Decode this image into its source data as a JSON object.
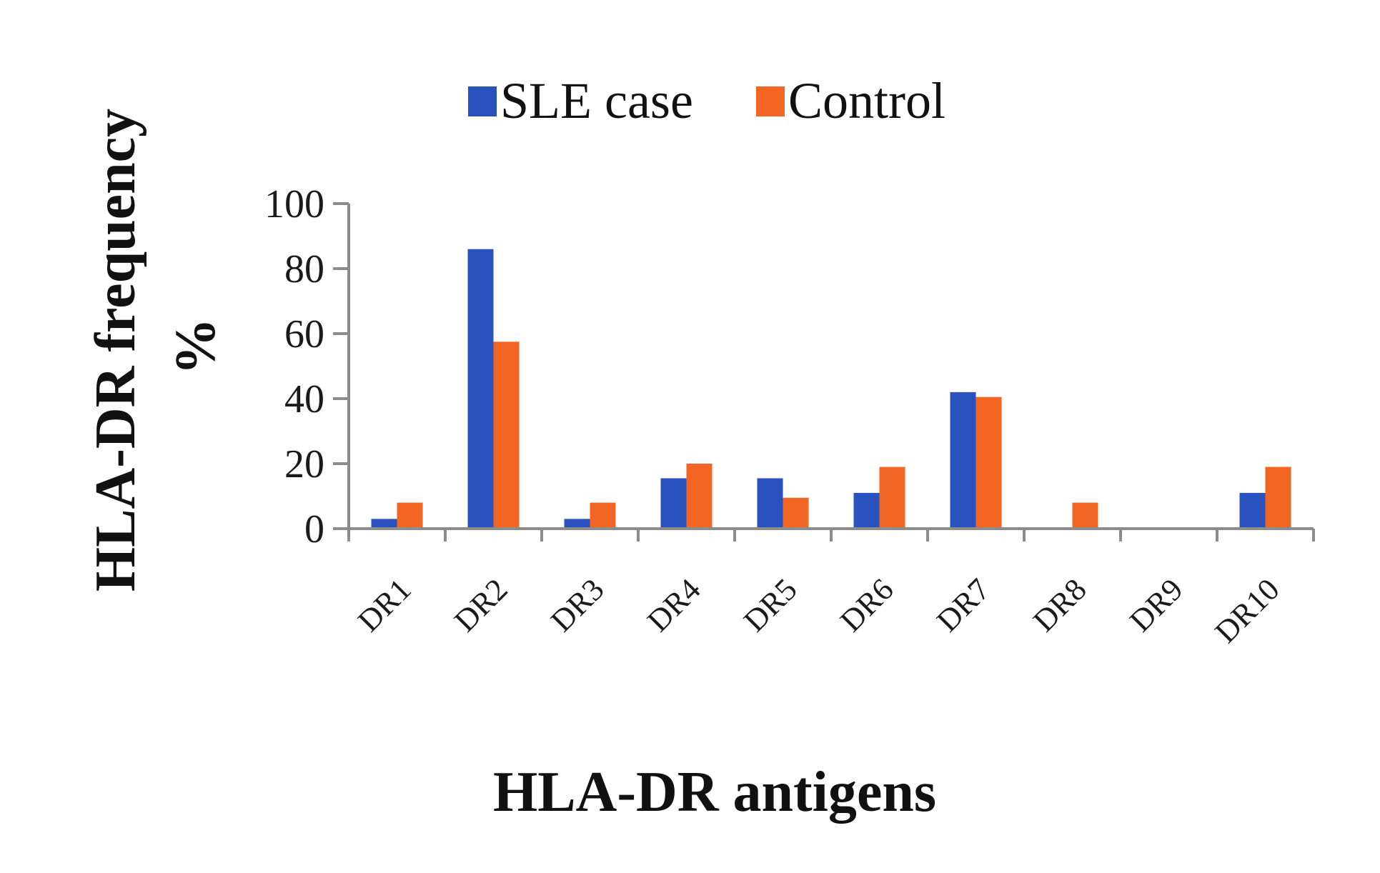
{
  "chart_data": {
    "type": "bar",
    "categories": [
      "DR1",
      "DR2",
      "DR3",
      "DR4",
      "DR5",
      "DR6",
      "DR7",
      "DR8",
      "DR9",
      "DR10"
    ],
    "series": [
      {
        "name": "SLE case",
        "color": "#2a52be",
        "values": [
          3,
          86,
          3,
          15.5,
          15.5,
          11,
          42,
          0,
          0,
          11
        ]
      },
      {
        "name": "Control",
        "color": "#f26522",
        "values": [
          8,
          57.5,
          8,
          20,
          9.5,
          19,
          40.5,
          8,
          0,
          19
        ]
      }
    ],
    "ylim": [
      0,
      100
    ],
    "yticks": [
      "0",
      "20",
      "40",
      "60",
      "80",
      "100"
    ],
    "xlabel": "HLA-DR antigens",
    "ylabel_line1": "HLA-DR frequency",
    "ylabel_line2": "%",
    "legend_position": "top",
    "grid": false
  }
}
